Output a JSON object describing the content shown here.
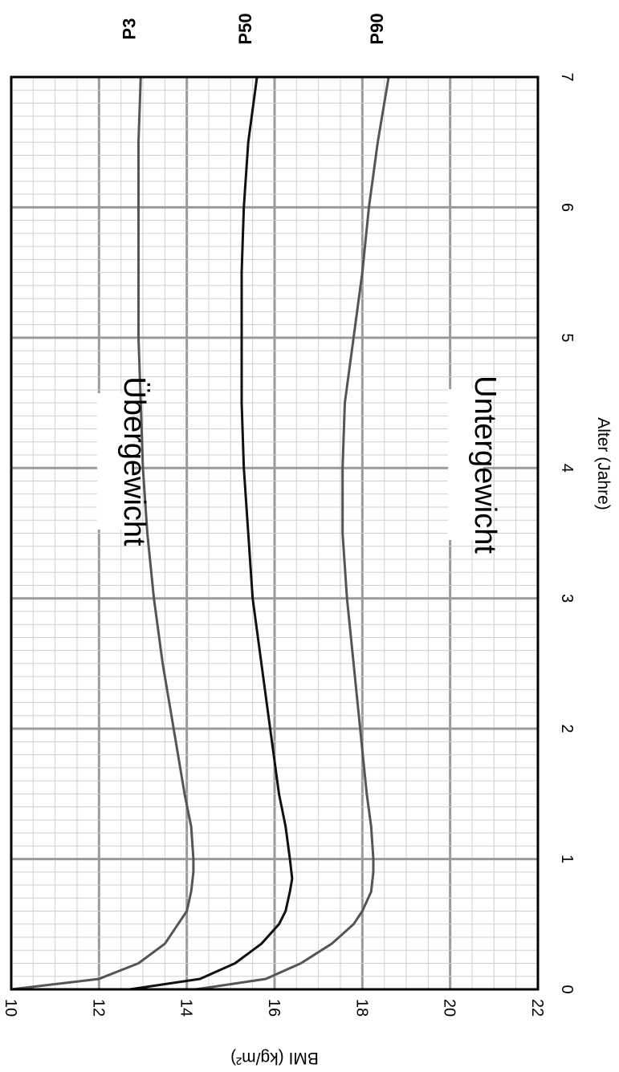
{
  "chart_data": {
    "type": "line",
    "xlabel": "Alter (Jahre)",
    "ylabel": "BMI (kg/m²)",
    "xlim": [
      0,
      7
    ],
    "ylim": [
      10,
      22
    ],
    "x_ticks": [
      "0",
      "1",
      "2",
      "3",
      "4",
      "5",
      "6",
      "7"
    ],
    "y_ticks": [
      "10",
      "12",
      "14",
      "16",
      "18",
      "20",
      "22"
    ],
    "grid": true,
    "orientation": "rotated 90° clockwise",
    "series": [
      {
        "name": "P90",
        "color": "#555555",
        "x": [
          0,
          0.08,
          0.2,
          0.35,
          0.5,
          0.6,
          0.75,
          0.9,
          1.0,
          1.25,
          1.5,
          2.0,
          2.5,
          3.0,
          3.5,
          4.0,
          4.5,
          5.0,
          5.5,
          6.0,
          6.5,
          7.0
        ],
        "y": [
          14.2,
          15.8,
          16.6,
          17.3,
          17.8,
          18.0,
          18.2,
          18.25,
          18.25,
          18.2,
          18.1,
          17.95,
          17.8,
          17.65,
          17.55,
          17.55,
          17.6,
          17.8,
          18.0,
          18.15,
          18.35,
          18.6
        ]
      },
      {
        "name": "P50",
        "color": "#111111",
        "x": [
          0,
          0.08,
          0.2,
          0.35,
          0.5,
          0.6,
          0.75,
          0.85,
          1.0,
          1.25,
          1.5,
          2.0,
          2.5,
          3.0,
          3.5,
          4.0,
          4.5,
          5.0,
          5.5,
          6.0,
          6.5,
          7.0
        ],
        "y": [
          12.7,
          14.3,
          15.1,
          15.7,
          16.1,
          16.25,
          16.35,
          16.4,
          16.35,
          16.25,
          16.1,
          15.9,
          15.7,
          15.5,
          15.4,
          15.3,
          15.25,
          15.25,
          15.25,
          15.3,
          15.4,
          15.6
        ]
      },
      {
        "name": "P3",
        "color": "#555555",
        "x": [
          0,
          0.08,
          0.2,
          0.35,
          0.5,
          0.6,
          0.75,
          0.9,
          1.0,
          1.25,
          1.5,
          2.0,
          2.5,
          3.0,
          3.5,
          4.0,
          4.5,
          5.0,
          5.5,
          6.0,
          6.5,
          7.0
        ],
        "y": [
          10.0,
          12.0,
          12.9,
          13.5,
          13.8,
          14.0,
          14.1,
          14.15,
          14.15,
          14.1,
          13.95,
          13.7,
          13.45,
          13.25,
          13.1,
          13.0,
          12.95,
          12.9,
          12.9,
          12.9,
          12.9,
          12.95
        ]
      }
    ],
    "annotations": [
      "Übergewicht",
      "Untergewicht"
    ]
  }
}
